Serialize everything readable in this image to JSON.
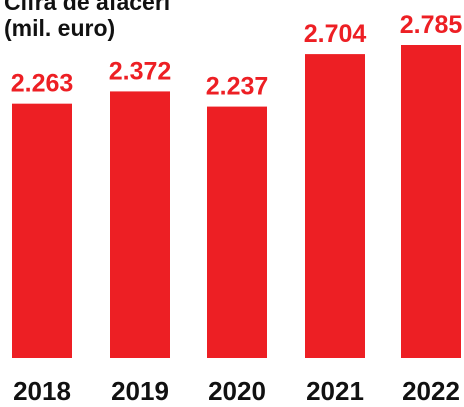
{
  "chart_data": {
    "type": "bar",
    "title": "Cifra de afaceri\n(mil. euro)",
    "categories": [
      "2018",
      "2019",
      "2020",
      "2021",
      "2022"
    ],
    "values": [
      2263,
      2372,
      2237,
      2704,
      2785
    ],
    "value_labels": [
      "2.263",
      "2.372",
      "2.237",
      "2.704",
      "2.785"
    ],
    "xlabel": "",
    "ylabel": "",
    "ylim": [
      0,
      2785
    ],
    "grid": false,
    "colors": {
      "bar": "#ED1F24",
      "value_label": "#ED1F24",
      "text": "#111111"
    }
  }
}
